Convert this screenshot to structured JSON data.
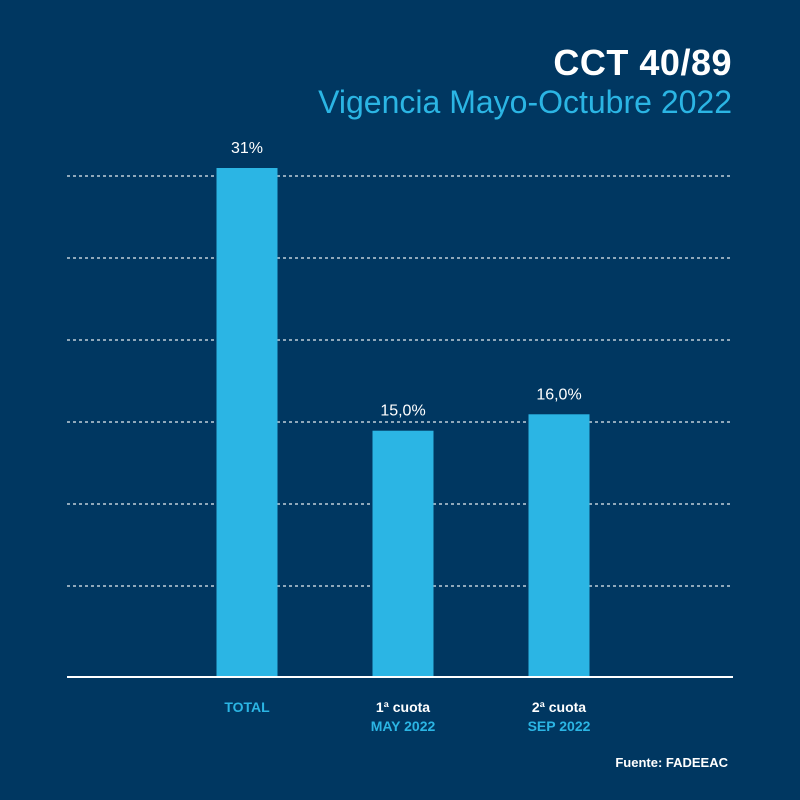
{
  "header": {
    "title": "CCT 40/89",
    "subtitle": "Vigencia Mayo-Octubre 2022"
  },
  "footer": {
    "source": "Fuente: FADEEAC"
  },
  "colors": {
    "background": "#003761",
    "bar": "#2bb5e4",
    "title": "#ffffff",
    "subtitle": "#2bb5e4",
    "category_secondary": "#2bb5e4"
  },
  "chart_data": {
    "type": "bar",
    "categories": [
      "TOTAL",
      "1ª cuota",
      "2ª cuota"
    ],
    "category_sublabels": [
      "",
      "MAY 2022",
      "SEP 2022"
    ],
    "values": [
      31,
      15.0,
      16.0
    ],
    "data_labels": [
      "31%",
      "15,0%",
      "16,0%"
    ],
    "ylim": [
      0,
      31
    ],
    "grid": true
  }
}
